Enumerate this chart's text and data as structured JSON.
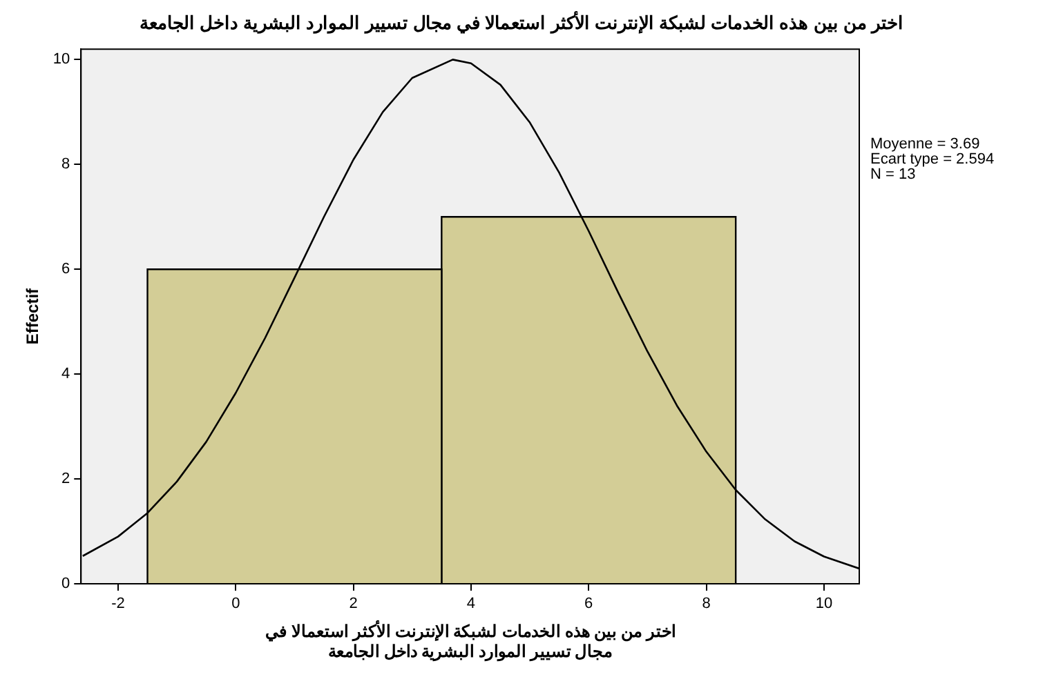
{
  "chart_data": {
    "type": "histogram",
    "title": "اختر من بين هذه الخدمات لشبكة الإنترنت الأكثر استعمالا في مجال تسيير الموارد البشرية داخل الجامعة",
    "xlabel": "اختر من بين هذه الخدمات لشبكة الإنترنت الأكثر استعمالا في مجال تسيير الموارد البشرية داخل الجامعة",
    "ylabel": "Effectif",
    "bins": [
      -1.5,
      3.5,
      8.5
    ],
    "values": [
      6,
      7
    ],
    "color": "#d3cd96",
    "series": [
      {
        "type": "line",
        "color": "#000000",
        "x": [
          -2.6,
          -2,
          -1.5,
          -1,
          -0.5,
          0,
          0.5,
          1,
          1.5,
          2,
          2.5,
          3,
          3.69,
          4,
          4.5,
          5,
          5.5,
          6,
          6.5,
          7,
          7.5,
          8,
          8.5,
          9,
          9.5,
          10,
          10.6
        ],
        "values": [
          0.53,
          0.9,
          1.35,
          1.95,
          2.71,
          3.64,
          4.69,
          5.84,
          7.0,
          8.09,
          9.0,
          9.65,
          10,
          9.93,
          9.52,
          8.8,
          7.84,
          6.73,
          5.56,
          4.43,
          3.4,
          2.52,
          1.79,
          1.23,
          0.81,
          0.52,
          0.29
        ]
      }
    ],
    "xlim": [
      -2.63,
      10.6
    ],
    "xticks": [
      -2,
      0,
      2,
      4,
      6,
      8,
      10
    ],
    "ylim": [
      0,
      10.2
    ],
    "yticks": [
      0,
      2,
      4,
      6,
      8,
      10
    ],
    "grid": false,
    "legend": false,
    "marker": "none",
    "line_style": "solid",
    "annotations": [
      "Moyenne = 3.69",
      "Ecart type = 2.594",
      "N = 13"
    ]
  }
}
